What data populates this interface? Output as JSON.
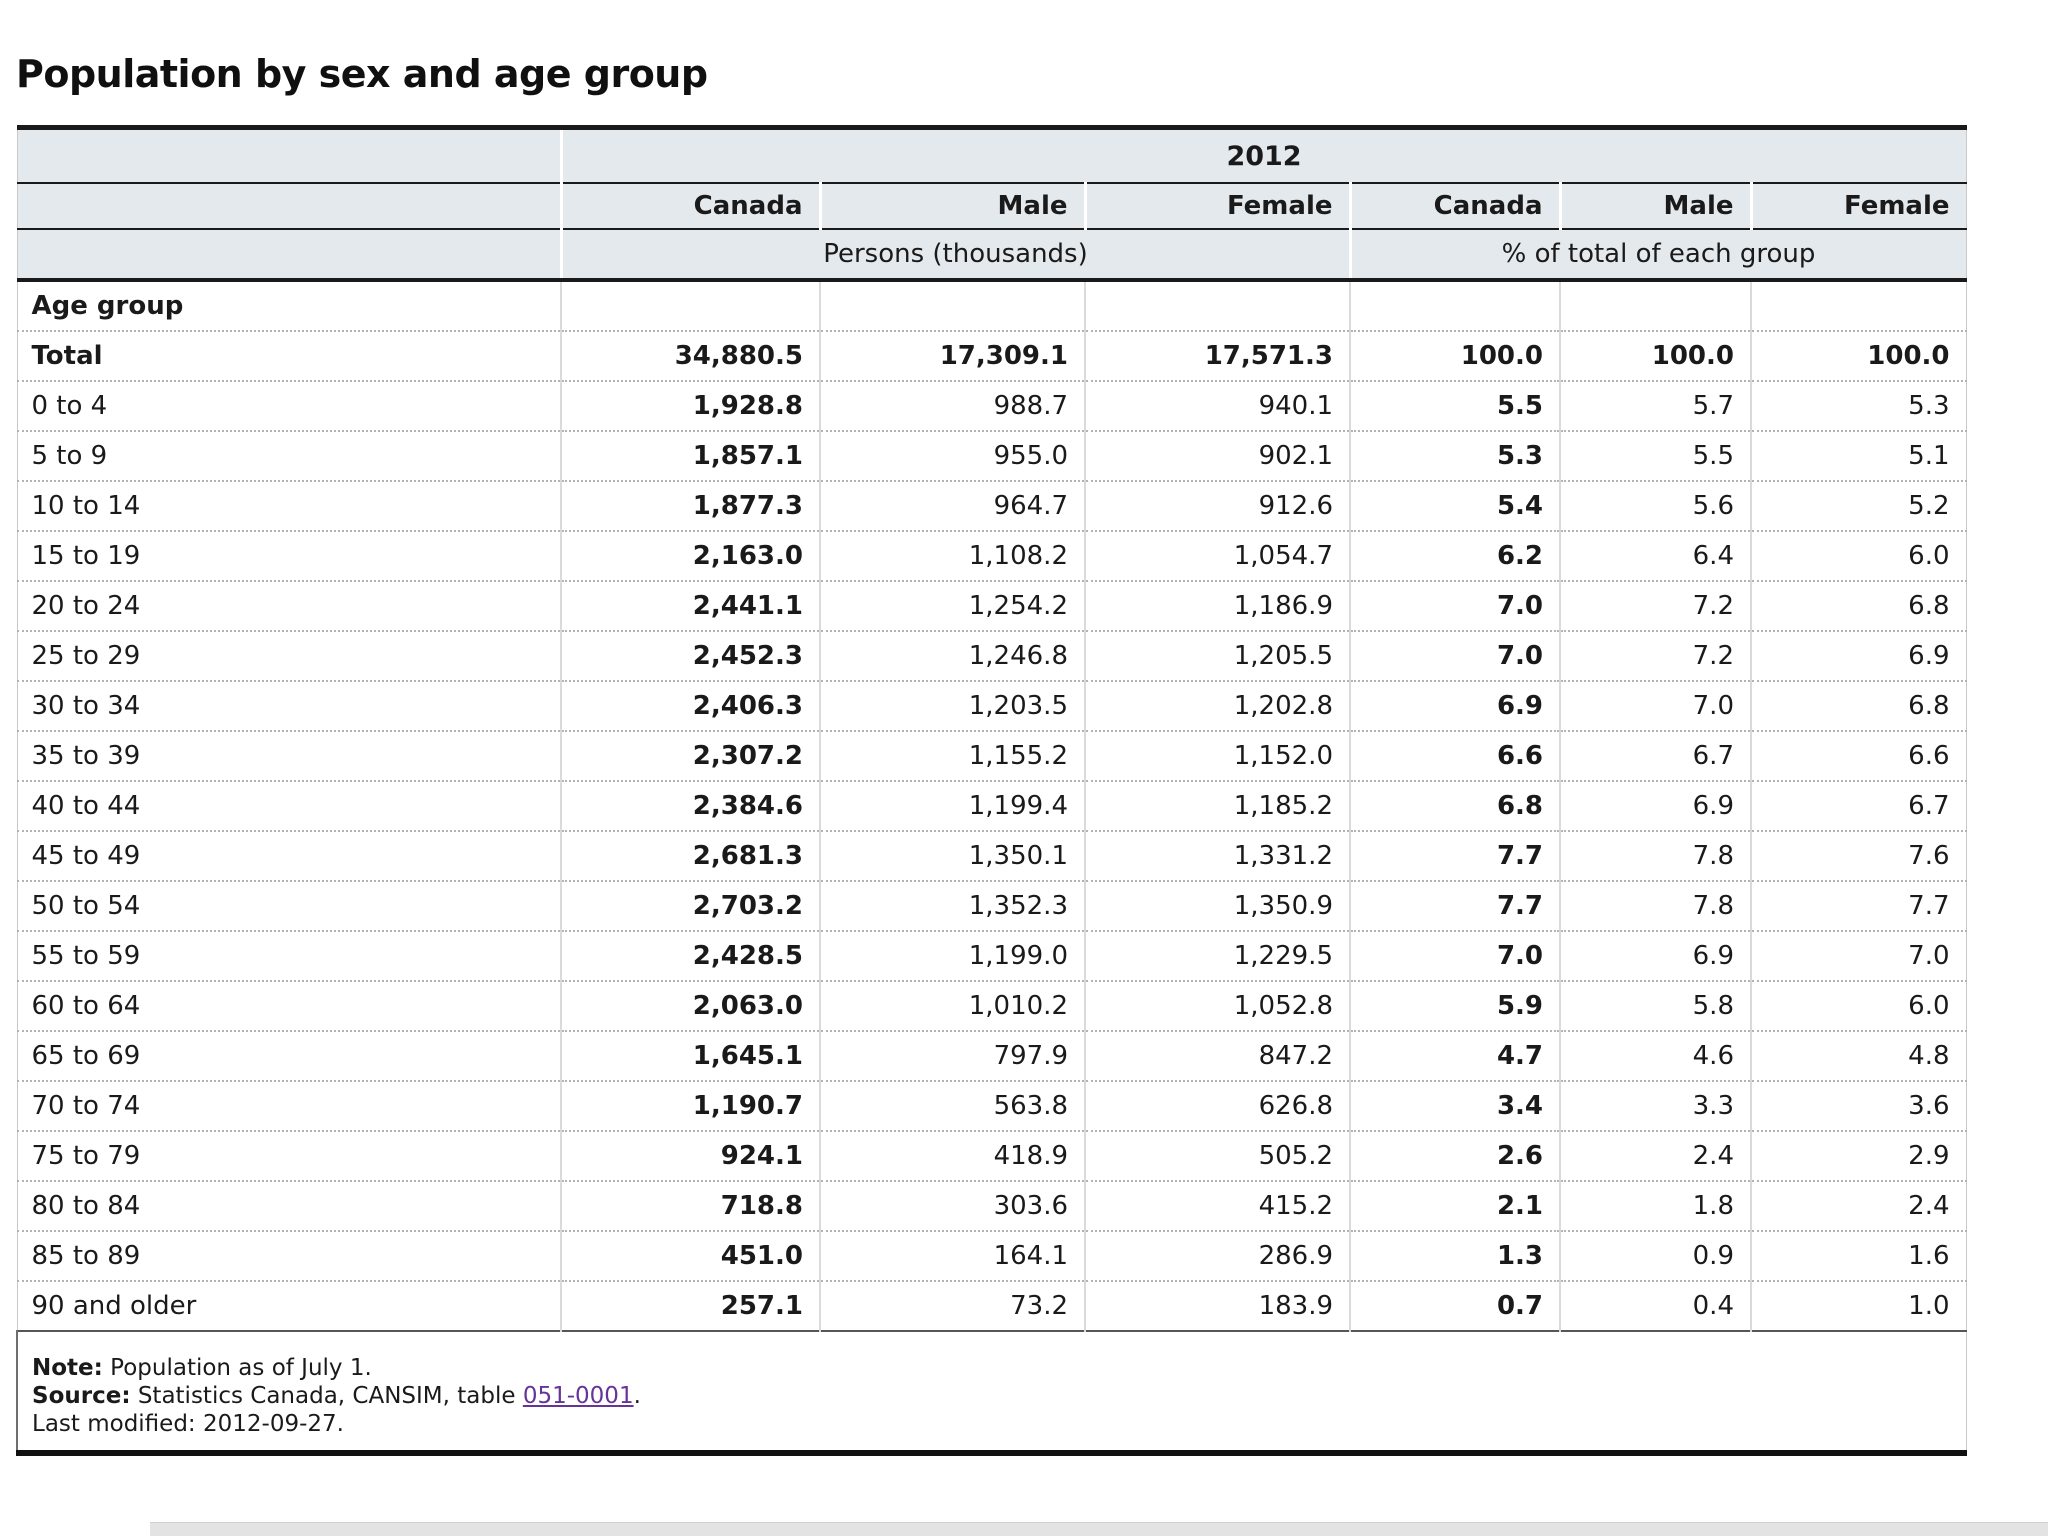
{
  "title": "Population by sex and age group",
  "table": {
    "year": "2012",
    "col_headers": [
      "Canada",
      "Male",
      "Female",
      "Canada",
      "Male",
      "Female"
    ],
    "unit_headers": [
      "Persons (thousands)",
      "% of total of each group"
    ],
    "section_label": "Age group",
    "rows": [
      {
        "label": "Total",
        "bold": true,
        "values": [
          "34,880.5",
          "17,309.1",
          "17,571.3",
          "100.0",
          "100.0",
          "100.0"
        ]
      },
      {
        "label": "0 to 4",
        "values": [
          "1,928.8",
          "988.7",
          "940.1",
          "5.5",
          "5.7",
          "5.3"
        ]
      },
      {
        "label": "5 to 9",
        "values": [
          "1,857.1",
          "955.0",
          "902.1",
          "5.3",
          "5.5",
          "5.1"
        ]
      },
      {
        "label": "10 to 14",
        "values": [
          "1,877.3",
          "964.7",
          "912.6",
          "5.4",
          "5.6",
          "5.2"
        ]
      },
      {
        "label": "15 to 19",
        "values": [
          "2,163.0",
          "1,108.2",
          "1,054.7",
          "6.2",
          "6.4",
          "6.0"
        ]
      },
      {
        "label": "20 to 24",
        "values": [
          "2,441.1",
          "1,254.2",
          "1,186.9",
          "7.0",
          "7.2",
          "6.8"
        ]
      },
      {
        "label": "25 to 29",
        "values": [
          "2,452.3",
          "1,246.8",
          "1,205.5",
          "7.0",
          "7.2",
          "6.9"
        ]
      },
      {
        "label": "30 to 34",
        "values": [
          "2,406.3",
          "1,203.5",
          "1,202.8",
          "6.9",
          "7.0",
          "6.8"
        ]
      },
      {
        "label": "35 to 39",
        "values": [
          "2,307.2",
          "1,155.2",
          "1,152.0",
          "6.6",
          "6.7",
          "6.6"
        ]
      },
      {
        "label": "40 to 44",
        "values": [
          "2,384.6",
          "1,199.4",
          "1,185.2",
          "6.8",
          "6.9",
          "6.7"
        ]
      },
      {
        "label": "45 to 49",
        "values": [
          "2,681.3",
          "1,350.1",
          "1,331.2",
          "7.7",
          "7.8",
          "7.6"
        ]
      },
      {
        "label": "50 to 54",
        "values": [
          "2,703.2",
          "1,352.3",
          "1,350.9",
          "7.7",
          "7.8",
          "7.7"
        ]
      },
      {
        "label": "55 to 59",
        "values": [
          "2,428.5",
          "1,199.0",
          "1,229.5",
          "7.0",
          "6.9",
          "7.0"
        ]
      },
      {
        "label": "60 to 64",
        "values": [
          "2,063.0",
          "1,010.2",
          "1,052.8",
          "5.9",
          "5.8",
          "6.0"
        ]
      },
      {
        "label": "65 to 69",
        "values": [
          "1,645.1",
          "797.9",
          "847.2",
          "4.7",
          "4.6",
          "4.8"
        ]
      },
      {
        "label": "70 to 74",
        "values": [
          "1,190.7",
          "563.8",
          "626.8",
          "3.4",
          "3.3",
          "3.6"
        ]
      },
      {
        "label": "75 to 79",
        "values": [
          "924.1",
          "418.9",
          "505.2",
          "2.6",
          "2.4",
          "2.9"
        ]
      },
      {
        "label": "80 to 84",
        "values": [
          "718.8",
          "303.6",
          "415.2",
          "2.1",
          "1.8",
          "2.4"
        ]
      },
      {
        "label": "85 to 89",
        "values": [
          "451.0",
          "164.1",
          "286.9",
          "1.3",
          "0.9",
          "1.6"
        ]
      },
      {
        "label": "90 and older",
        "values": [
          "257.1",
          "73.2",
          "183.9",
          "0.7",
          "0.4",
          "1.0"
        ]
      }
    ]
  },
  "notes": {
    "note_label": "Note:",
    "note_text": " Population as of July 1.",
    "source_label": "Source:",
    "source_text_before": " Statistics Canada, CANSIM, table ",
    "source_link": "051-0001",
    "source_text_after": ".",
    "last_modified": "Last modified: 2012-09-27."
  },
  "colors": {
    "header_background": "#e4e9ed",
    "border_black": "#1a1a1a",
    "dotted_separator": "#b3b3b3",
    "link_purple": "#663399"
  }
}
